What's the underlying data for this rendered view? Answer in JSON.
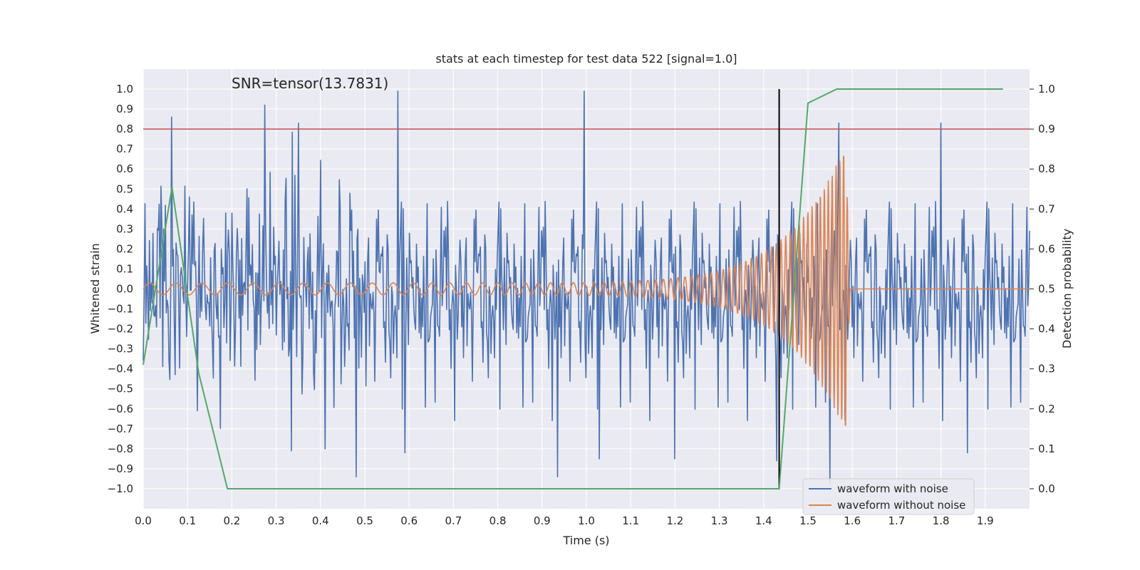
{
  "chart_data": {
    "type": "line",
    "title": "stats at each timestep for test data 522 [signal=1.0]",
    "xlabel": "Time (s)",
    "ylabel": "Whitened strain",
    "ylabel_right": "Detection probability",
    "annotation": "SNR=tensor(13.7831)",
    "xlim": [
      0.0,
      2.0
    ],
    "ylim": [
      -1.1,
      1.1
    ],
    "ylim_right": [
      -0.05,
      1.05
    ],
    "xticks": [
      "0.0",
      "0.1",
      "0.2",
      "0.3",
      "0.4",
      "0.5",
      "0.6",
      "0.7",
      "0.8",
      "0.9",
      "1.0",
      "1.1",
      "1.2",
      "1.3",
      "1.4",
      "1.5",
      "1.6",
      "1.7",
      "1.8",
      "1.9"
    ],
    "yticks": [
      "1.0",
      "0.9",
      "0.8",
      "0.7",
      "0.6",
      "0.5",
      "0.4",
      "0.3",
      "0.2",
      "0.1",
      "0.0",
      "−0.1",
      "−0.2",
      "−0.3",
      "−0.4",
      "−0.5",
      "−0.6",
      "−0.7",
      "−0.8",
      "−0.9",
      "−1.0"
    ],
    "yticks_right": [
      "1.0",
      "0.9",
      "0.8",
      "0.7",
      "0.6",
      "0.5",
      "0.4",
      "0.3",
      "0.2",
      "0.1",
      "0.0"
    ],
    "grid": true,
    "legend_position": "lower-right",
    "colors": {
      "background": "#eaeaf2",
      "noisy": "#4c72b0",
      "clean": "#dd8452",
      "probability": "#55a868",
      "threshold": "#c44e52",
      "marker": "#000000"
    },
    "threshold": {
      "y": 0.8
    },
    "marker_line": {
      "x": 1.435,
      "y0": -1.0,
      "y1": 1.0
    },
    "series": [
      {
        "name": "waveform with noise",
        "kind": "noise",
        "x_range": [
          0.0,
          2.0
        ],
        "samples": 1000,
        "amplitude_std": 0.26,
        "spikes": [
          {
            "x": 0.065,
            "y": 0.86
          },
          {
            "x": 0.275,
            "y": 0.92
          },
          {
            "x": 0.575,
            "y": 0.99
          },
          {
            "x": 0.995,
            "y": 0.99
          },
          {
            "x": 0.48,
            "y": -0.94
          },
          {
            "x": 0.935,
            "y": -0.94
          },
          {
            "x": 1.03,
            "y": -0.85
          },
          {
            "x": 1.55,
            "y": -0.98
          },
          {
            "x": 0.335,
            "y": -0.81
          },
          {
            "x": 0.59,
            "y": -0.82
          },
          {
            "x": 1.2,
            "y": -0.85
          },
          {
            "x": 1.86,
            "y": -0.82
          },
          {
            "x": 1.43,
            "y": -0.86
          },
          {
            "x": 1.8,
            "y": 0.83
          },
          {
            "x": 0.35,
            "y": 0.83
          },
          {
            "x": 1.57,
            "y": 0.83
          }
        ]
      },
      {
        "name": "waveform without noise",
        "kind": "chirp",
        "start": 0.0,
        "merger": 1.585,
        "end": 2.0,
        "amp_start": 0.03,
        "amp_peak": 0.72,
        "freq_start": 17,
        "freq_end": 120
      },
      {
        "name": "detection probability",
        "axis": "right",
        "x": [
          0.0,
          0.065,
          0.125,
          0.19,
          0.25,
          1.435,
          1.5,
          1.565,
          1.94
        ],
        "y": [
          0.31,
          0.755,
          0.29,
          0.0,
          0.0,
          0.0,
          0.965,
          1.0,
          1.0
        ]
      }
    ],
    "legend": [
      {
        "label": "waveform with noise",
        "color": "#4c72b0"
      },
      {
        "label": "waveform without noise",
        "color": "#dd8452"
      }
    ]
  }
}
